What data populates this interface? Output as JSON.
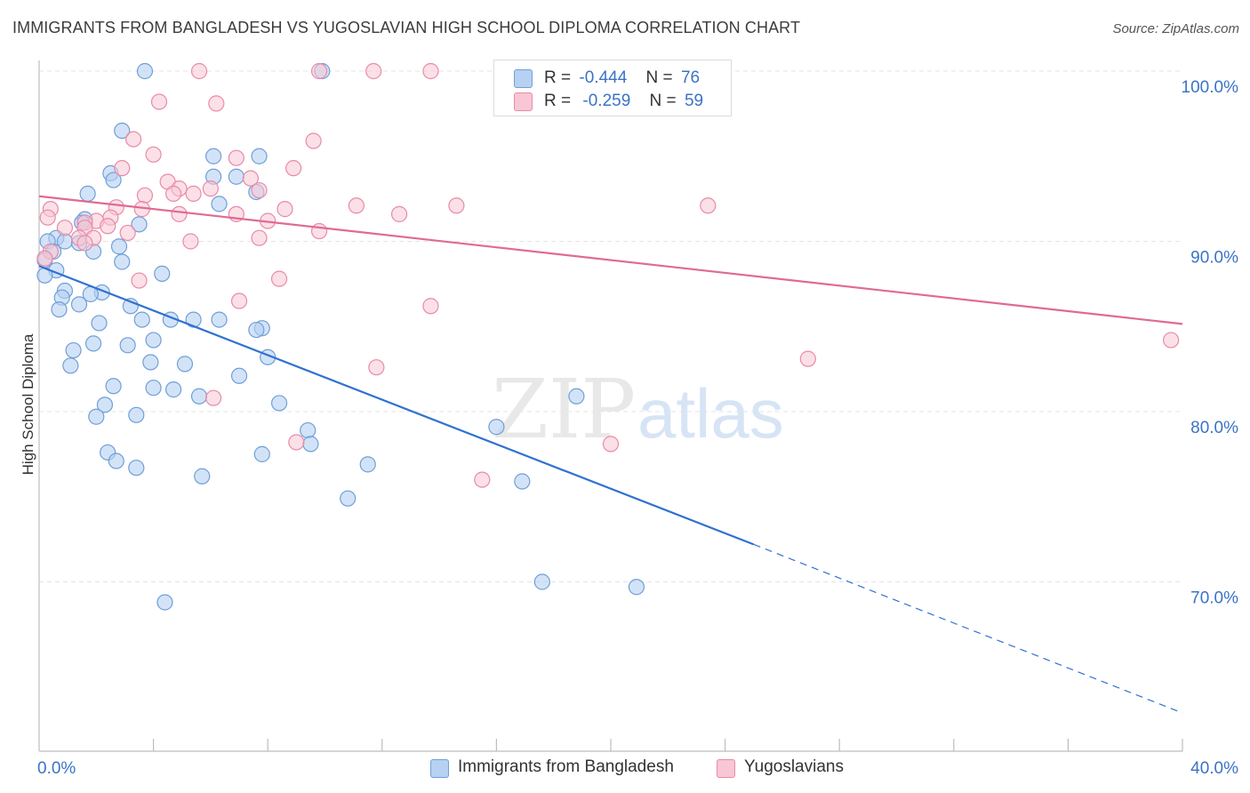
{
  "title": "IMMIGRANTS FROM BANGLADESH VS YUGOSLAVIAN HIGH SCHOOL DIPLOMA CORRELATION CHART",
  "source": "Source: ZipAtlas.com",
  "watermark": {
    "zip": "ZIP",
    "atlas": "atlas"
  },
  "legend_top": [
    {
      "r_label": "R =",
      "r_value": "-0.444",
      "n_label": "N =",
      "n_value": "76"
    },
    {
      "r_label": "R =",
      "r_value": "-0.259",
      "n_label": "N =",
      "n_value": "59"
    }
  ],
  "colors": {
    "blue_fill": "#b6d1f2",
    "blue_stroke": "#6f9fd8",
    "blue_line": "#2f72d0",
    "pink_fill": "#f8c6d4",
    "pink_stroke": "#e98aa8",
    "pink_line": "#e06a94",
    "tick_label": "#3b73c4"
  },
  "chart_data": {
    "type": "scatter",
    "title": "IMMIGRANTS FROM BANGLADESH VS YUGOSLAVIAN HIGH SCHOOL DIPLOMA CORRELATION CHART",
    "xlabel": "",
    "ylabel": "High School Diploma",
    "xlim": [
      0,
      40
    ],
    "ylim": [
      61.5,
      102
    ],
    "x_tick_labels": [
      {
        "value": 0,
        "label": "0.0%"
      },
      {
        "value": 40,
        "label": "40.0%"
      }
    ],
    "y_tick_labels": [
      {
        "value": 100,
        "label": "100.0%"
      },
      {
        "value": 90,
        "label": "90.0%"
      },
      {
        "value": 80,
        "label": "80.0%"
      },
      {
        "value": 70,
        "label": "70.0%"
      }
    ],
    "grid": true,
    "legend": "bottom-center",
    "series": [
      {
        "name": "Immigrants from Bangladesh",
        "color": "blue",
        "points": [
          [
            3.7,
            100
          ],
          [
            9.9,
            100
          ],
          [
            2.9,
            96.5
          ],
          [
            6.1,
            95
          ],
          [
            7.7,
            95
          ],
          [
            2.5,
            94
          ],
          [
            6.1,
            93.8
          ],
          [
            6.9,
            93.8
          ],
          [
            2.6,
            93.6
          ],
          [
            7.6,
            92.9
          ],
          [
            1.7,
            92.8
          ],
          [
            6.3,
            92.2
          ],
          [
            1.6,
            91.3
          ],
          [
            1.5,
            91.1
          ],
          [
            3.5,
            91
          ],
          [
            0.6,
            90.2
          ],
          [
            0.3,
            90
          ],
          [
            0.9,
            90
          ],
          [
            1.4,
            89.9
          ],
          [
            1.9,
            89.4
          ],
          [
            0.5,
            89.4
          ],
          [
            2.8,
            89.7
          ],
          [
            0.2,
            88.9
          ],
          [
            2.9,
            88.8
          ],
          [
            0.6,
            88.3
          ],
          [
            0.2,
            88
          ],
          [
            4.3,
            88.1
          ],
          [
            0.9,
            87.1
          ],
          [
            2.2,
            87
          ],
          [
            1.8,
            86.9
          ],
          [
            0.8,
            86.7
          ],
          [
            1.4,
            86.3
          ],
          [
            0.7,
            86
          ],
          [
            3.2,
            86.2
          ],
          [
            5.4,
            85.4
          ],
          [
            3.6,
            85.4
          ],
          [
            6.3,
            85.4
          ],
          [
            4.6,
            85.4
          ],
          [
            2.1,
            85.2
          ],
          [
            7.8,
            84.9
          ],
          [
            7.6,
            84.8
          ],
          [
            1.9,
            84
          ],
          [
            3.1,
            83.9
          ],
          [
            4,
            84.2
          ],
          [
            1.2,
            83.6
          ],
          [
            8,
            83.2
          ],
          [
            3.9,
            82.9
          ],
          [
            5.1,
            82.8
          ],
          [
            1.1,
            82.7
          ],
          [
            7,
            82.1
          ],
          [
            2.6,
            81.5
          ],
          [
            4,
            81.4
          ],
          [
            4.7,
            81.3
          ],
          [
            5.6,
            80.9
          ],
          [
            18.8,
            80.9
          ],
          [
            2.3,
            80.4
          ],
          [
            8.4,
            80.5
          ],
          [
            3.4,
            79.8
          ],
          [
            2,
            79.7
          ],
          [
            16,
            79.1
          ],
          [
            9.4,
            78.9
          ],
          [
            9.5,
            78.1
          ],
          [
            2.4,
            77.6
          ],
          [
            7.8,
            77.5
          ],
          [
            2.7,
            77.1
          ],
          [
            11.5,
            76.9
          ],
          [
            3.4,
            76.7
          ],
          [
            5.7,
            76.2
          ],
          [
            16.9,
            75.9
          ],
          [
            10.8,
            74.9
          ],
          [
            17.6,
            70
          ],
          [
            20.9,
            69.7
          ],
          [
            4.4,
            68.8
          ]
        ]
      },
      {
        "name": "Yugoslavians",
        "color": "pink",
        "points": [
          [
            5.6,
            100
          ],
          [
            9.8,
            100
          ],
          [
            11.7,
            100
          ],
          [
            13.7,
            100
          ],
          [
            4.2,
            98.2
          ],
          [
            6.2,
            98.1
          ],
          [
            3.3,
            96
          ],
          [
            9.6,
            95.9
          ],
          [
            4,
            95.1
          ],
          [
            6.9,
            94.9
          ],
          [
            2.9,
            94.3
          ],
          [
            8.9,
            94.3
          ],
          [
            7.4,
            93.7
          ],
          [
            4.5,
            93.5
          ],
          [
            4.9,
            93.1
          ],
          [
            7.7,
            93
          ],
          [
            6,
            93.1
          ],
          [
            3.7,
            92.7
          ],
          [
            5.4,
            92.8
          ],
          [
            4.7,
            92.8
          ],
          [
            0.4,
            91.9
          ],
          [
            11.1,
            92.1
          ],
          [
            14.6,
            92.1
          ],
          [
            23.4,
            92.1
          ],
          [
            3.6,
            91.9
          ],
          [
            2.7,
            92
          ],
          [
            8.6,
            91.9
          ],
          [
            4.9,
            91.6
          ],
          [
            6.9,
            91.6
          ],
          [
            12.6,
            91.6
          ],
          [
            0.3,
            91.4
          ],
          [
            2.5,
            91.4
          ],
          [
            2,
            91.2
          ],
          [
            1.6,
            91.1
          ],
          [
            8,
            91.2
          ],
          [
            2.4,
            90.9
          ],
          [
            1.6,
            90.8
          ],
          [
            0.9,
            90.8
          ],
          [
            3.1,
            90.5
          ],
          [
            9.8,
            90.6
          ],
          [
            1.4,
            90.2
          ],
          [
            1.9,
            90.2
          ],
          [
            7.7,
            90.2
          ],
          [
            5.3,
            90
          ],
          [
            1.6,
            89.9
          ],
          [
            0.4,
            89.4
          ],
          [
            0.2,
            89
          ],
          [
            8.4,
            87.8
          ],
          [
            3.5,
            87.7
          ],
          [
            7,
            86.5
          ],
          [
            13.7,
            86.2
          ],
          [
            39.6,
            84.2
          ],
          [
            26.9,
            83.1
          ],
          [
            11.8,
            82.6
          ],
          [
            6.1,
            80.8
          ],
          [
            9,
            78.2
          ],
          [
            20,
            78.1
          ],
          [
            15.5,
            76
          ]
        ]
      }
    ],
    "trendlines": [
      {
        "series": "Immigrants from Bangladesh",
        "solid": {
          "x0": 0,
          "y0": 88.55,
          "x1": 25,
          "y1": 72.2
        },
        "dashed": {
          "x0": 25,
          "y0": 72.2,
          "x1": 40,
          "y1": 62.3
        }
      },
      {
        "series": "Yugoslavians",
        "solid": {
          "x0": 0,
          "y0": 92.65,
          "x1": 40,
          "y1": 85.15
        }
      }
    ]
  }
}
